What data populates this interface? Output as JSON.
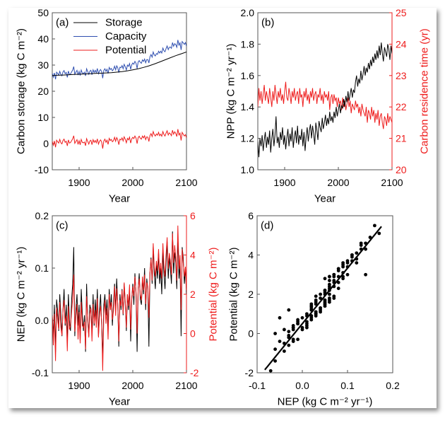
{
  "chart_data": [
    {
      "panel": "(a)",
      "type": "line",
      "xlabel": "Year",
      "ylabel": "Carbon storage (kg C m⁻²)",
      "xlim": [
        1850,
        2100
      ],
      "ylim": [
        -10,
        50
      ],
      "xticks": [
        1900,
        2000,
        2100
      ],
      "yticks": [
        -10,
        0,
        10,
        20,
        30,
        40,
        50
      ],
      "legend_position": "top",
      "series": [
        {
          "name": "Storage",
          "color": "#000000",
          "x_start": 1850,
          "x_step": 10,
          "values": [
            26.0,
            26.1,
            26.2,
            26.3,
            26.4,
            26.5,
            26.6,
            26.7,
            26.8,
            26.9,
            27.0,
            27.1,
            27.3,
            27.5,
            27.8,
            28.2,
            28.6,
            29.1,
            29.7,
            30.4,
            31.2,
            32.0,
            32.8,
            33.6,
            34.3,
            35.0
          ]
        },
        {
          "name": "Capacity",
          "color": "#2f4fb0",
          "x_start": 1850,
          "x_step": 2,
          "values": [
            26.9,
            25.4,
            27.0,
            24.6,
            27.3,
            26.8,
            26.2,
            27.6,
            26.4,
            25.9,
            27.4,
            27.9,
            26.7,
            27.2,
            25.3,
            27.7,
            26.4,
            26.6,
            27.4,
            28.1,
            29.4,
            26.5,
            27.3,
            28.0,
            26.2,
            27.6,
            26.0,
            28.1,
            26.9,
            26.8,
            27.3,
            25.9,
            28.6,
            27.5,
            26.5,
            27.7,
            28.0,
            26.3,
            28.2,
            27.2,
            28.0,
            27.1,
            28.7,
            26.7,
            27.8,
            28.3,
            27.5,
            25.0,
            28.0,
            28.6,
            27.6,
            28.4,
            26.8,
            29.1,
            28.3,
            28.7,
            27.8,
            28.3,
            29.6,
            28.2,
            29.7,
            29.0,
            27.1,
            29.2,
            29.0,
            29.8,
            28.6,
            30.3,
            29.3,
            28.1,
            30.0,
            29.5,
            30.6,
            28.4,
            30.1,
            30.8,
            30.3,
            31.4,
            30.7,
            28.7,
            31.2,
            31.7,
            31.0,
            30.7,
            32.0,
            31.4,
            32.3,
            30.9,
            32.1,
            32.1,
            30.8,
            33.2,
            34.0,
            33.0,
            35.0,
            33.9,
            33.5,
            34.4,
            34.1,
            35.3,
            34.6,
            35.3,
            34.6,
            36.5,
            35.5,
            35.1,
            36.3,
            37.3,
            35.9,
            36.8,
            36.9,
            36.4,
            38.6,
            37.2,
            38.2,
            37.8,
            36.8,
            39.6,
            37.6,
            38.5,
            35.8,
            39.0,
            38.5,
            37.9,
            38.6,
            37.2
          ]
        },
        {
          "name": "Potential",
          "color": "#ee1c1c",
          "x_start": 1850,
          "x_step": 2,
          "values": [
            0.9,
            -0.6,
            1.0,
            -1.4,
            1.3,
            0.7,
            0.2,
            1.6,
            0.3,
            -0.1,
            1.2,
            1.7,
            0.5,
            0.9,
            -0.9,
            1.4,
            0.2,
            0.4,
            1.1,
            1.8,
            3.0,
            0.1,
            0.8,
            1.5,
            -0.3,
            1.1,
            -0.5,
            1.6,
            0.4,
            0.3,
            0.6,
            -0.8,
            1.9,
            0.8,
            -0.2,
            1.0,
            1.3,
            -0.4,
            1.5,
            0.5,
            1.2,
            0.3,
            1.8,
            -0.2,
            0.9,
            1.4,
            0.6,
            -1.9,
            1.0,
            1.7,
            0.5,
            1.3,
            -0.3,
            2.0,
            1.2,
            1.6,
            0.7,
            1.1,
            2.4,
            0.9,
            2.3,
            1.5,
            -0.4,
            1.7,
            1.4,
            2.2,
            1.0,
            2.6,
            1.6,
            0.3,
            2.0,
            1.4,
            2.5,
            0.2,
            1.8,
            2.4,
            1.9,
            2.9,
            2.1,
            0.0,
            2.3,
            2.8,
            2.0,
            1.7,
            2.9,
            2.2,
            3.0,
            1.5,
            2.6,
            2.4,
            0.8,
            3.1,
            3.8,
            2.7,
            4.6,
            3.4,
            2.9,
            3.7,
            3.2,
            4.3,
            3.0,
            3.6,
            2.8,
            4.6,
            3.5,
            2.9,
            4.0,
            4.9,
            3.3,
            4.1,
            3.7,
            3.0,
            5.1,
            3.6,
            4.5,
            3.9,
            2.7,
            5.5,
            3.3,
            4.0,
            1.2,
            4.3,
            3.6,
            2.9,
            3.4,
            2.2
          ]
        }
      ]
    },
    {
      "panel": "(b)",
      "type": "line",
      "xlabel": "Year",
      "ylabel": "NPP (kg C m⁻² yr⁻¹)",
      "ylabel_right": "Carbon residence time (yr)",
      "xlim": [
        1850,
        2100
      ],
      "ylim": [
        1.0,
        2.0
      ],
      "ylim_right": [
        20,
        25
      ],
      "xticks": [
        1900,
        2000,
        2100
      ],
      "yticks": [
        "1.0",
        "1.2",
        "1.4",
        "1.6",
        "1.8",
        "2.0"
      ],
      "yticks_right": [
        20,
        21,
        22,
        23,
        24,
        25
      ],
      "right_axis_color": "#ee1c1c",
      "series": [
        {
          "axis": "right",
          "color": "#ee1c1c",
          "x_start": 1850,
          "x_step": 2,
          "values": [
            22.0,
            22.6,
            22.2,
            22.5,
            22.1,
            22.4,
            22.7,
            22.2,
            22.5,
            22.3,
            22.1,
            22.6,
            22.3,
            22.0,
            22.5,
            22.2,
            22.7,
            22.4,
            22.1,
            22.5,
            22.3,
            22.6,
            22.2,
            22.4,
            22.1,
            22.5,
            22.8,
            22.3,
            22.2,
            22.6,
            22.4,
            22.1,
            22.5,
            22.3,
            22.6,
            22.2,
            22.4,
            22.5,
            22.1,
            22.6,
            22.3,
            22.4,
            22.0,
            22.5,
            22.3,
            22.6,
            22.2,
            22.4,
            22.1,
            22.5,
            22.3,
            22.6,
            22.2,
            22.4,
            22.5,
            22.1,
            22.4,
            22.3,
            22.6,
            22.2,
            22.4,
            22.1,
            22.5,
            22.3,
            22.4,
            22.2,
            22.5,
            21.9,
            22.3,
            22.4,
            22.1,
            22.4,
            22.2,
            22.3,
            22.0,
            22.3,
            22.1,
            22.2,
            21.9,
            22.3,
            22.0,
            22.2,
            21.9,
            22.1,
            22.3,
            22.0,
            22.2,
            21.8,
            22.1,
            22.0,
            21.9,
            22.2,
            22.0,
            22.1,
            21.8,
            22.0,
            21.7,
            22.1,
            21.9,
            21.8,
            21.7,
            22.0,
            21.5,
            21.9,
            21.8,
            21.6,
            22.0,
            21.7,
            21.9,
            21.5,
            21.8,
            21.6,
            21.9,
            21.4,
            21.7,
            21.8,
            21.5,
            21.3,
            21.7,
            21.6,
            21.4,
            21.8,
            21.5,
            21.7,
            21.6,
            21.5
          ]
        },
        {
          "axis": "left",
          "color": "#000000",
          "x_start": 1850,
          "x_step": 2,
          "values": [
            1.18,
            1.08,
            1.2,
            1.15,
            1.22,
            1.12,
            1.19,
            1.24,
            1.14,
            1.21,
            1.16,
            1.25,
            1.11,
            1.2,
            1.26,
            1.15,
            1.22,
            1.34,
            1.17,
            1.21,
            1.14,
            1.24,
            1.19,
            1.27,
            1.16,
            1.22,
            1.13,
            1.2,
            1.26,
            1.15,
            1.23,
            1.18,
            1.27,
            1.14,
            1.21,
            1.25,
            1.17,
            1.28,
            1.16,
            1.22,
            1.19,
            1.26,
            1.15,
            1.24,
            1.12,
            1.21,
            1.27,
            1.18,
            1.25,
            1.29,
            1.2,
            1.28,
            1.23,
            1.16,
            1.3,
            1.25,
            1.19,
            1.31,
            1.27,
            1.24,
            1.33,
            1.26,
            1.3,
            1.35,
            1.28,
            1.33,
            1.29,
            1.37,
            1.31,
            1.34,
            1.3,
            1.37,
            1.33,
            1.4,
            1.34,
            1.38,
            1.42,
            1.36,
            1.41,
            1.39,
            1.45,
            1.4,
            1.47,
            1.43,
            1.5,
            1.44,
            1.48,
            1.52,
            1.46,
            1.51,
            1.49,
            1.56,
            1.6,
            1.53,
            1.58,
            1.55,
            1.63,
            1.57,
            1.61,
            1.66,
            1.6,
            1.65,
            1.62,
            1.68,
            1.64,
            1.7,
            1.66,
            1.72,
            1.68,
            1.74,
            1.7,
            1.76,
            1.71,
            1.79,
            1.73,
            1.81,
            1.74,
            1.69,
            1.78,
            1.75,
            1.72,
            1.8,
            1.77,
            1.7,
            1.79,
            1.74
          ]
        }
      ]
    },
    {
      "panel": "(c)",
      "type": "line",
      "xlabel": "Year",
      "ylabel": "NEP (kg C m⁻² yr⁻¹)",
      "ylabel_right": "Potential (kg C m⁻²)",
      "xlim": [
        1850,
        2100
      ],
      "ylim": [
        -0.1,
        0.2
      ],
      "ylim_right": [
        -2,
        6
      ],
      "xticks": [
        1900,
        2000,
        2100
      ],
      "yticks": [
        "-0.1",
        "0.0",
        "0.1",
        "0.2"
      ],
      "yticks_right": [
        -2,
        0,
        2,
        4,
        6
      ],
      "right_axis_color": "#ee1c1c",
      "series": [
        {
          "name": "NEP",
          "axis": "left",
          "color": "#000000",
          "x_start": 1850,
          "x_step": 2,
          "values": [
            0.01,
            -0.03,
            0.03,
            -0.06,
            0.04,
            0.02,
            -0.02,
            0.05,
            0.01,
            -0.03,
            0.02,
            0.06,
            -0.01,
            0.03,
            -0.04,
            0.05,
            0.0,
            -0.02,
            0.04,
            0.07,
            0.14,
            -0.03,
            0.02,
            0.05,
            -0.01,
            0.03,
            -0.04,
            0.06,
            0.01,
            -0.02,
            0.01,
            -0.06,
            0.07,
            0.0,
            -0.03,
            0.03,
            0.02,
            -0.02,
            0.05,
            -0.01,
            0.04,
            0.0,
            0.06,
            -0.03,
            0.02,
            0.05,
            -0.01,
            -0.07,
            0.03,
            0.05,
            0.01,
            0.04,
            -0.02,
            0.06,
            0.02,
            0.05,
            -0.01,
            0.03,
            0.07,
            0.02,
            0.08,
            0.03,
            -0.05,
            0.05,
            0.02,
            0.06,
            0.01,
            0.07,
            0.03,
            -0.02,
            0.05,
            0.02,
            0.06,
            -0.04,
            0.04,
            0.07,
            0.03,
            0.09,
            0.05,
            -0.06,
            0.06,
            0.09,
            0.04,
            0.03,
            0.08,
            0.05,
            0.1,
            0.02,
            0.08,
            0.06,
            -0.05,
            0.09,
            0.12,
            0.07,
            0.14,
            0.09,
            0.06,
            0.11,
            0.08,
            0.13,
            0.07,
            0.1,
            0.05,
            0.13,
            0.09,
            0.06,
            0.11,
            0.15,
            0.08,
            0.12,
            0.1,
            0.07,
            0.17,
            0.09,
            0.13,
            0.11,
            0.06,
            0.16,
            0.08,
            0.11,
            -0.03,
            0.14,
            0.12,
            0.07,
            0.1,
            0.05
          ]
        },
        {
          "name": "Potential",
          "axis": "right",
          "color": "#ee1c1c",
          "x_start": 1850,
          "x_step": 2,
          "values": [
            0.9,
            -0.6,
            1.0,
            -1.4,
            1.3,
            0.7,
            0.2,
            1.6,
            0.3,
            -0.1,
            1.2,
            1.7,
            0.5,
            0.9,
            -0.9,
            1.4,
            0.2,
            0.4,
            1.1,
            1.8,
            3.0,
            0.1,
            0.8,
            1.5,
            -0.3,
            1.1,
            -0.5,
            1.6,
            0.4,
            0.3,
            0.6,
            -0.8,
            1.9,
            0.8,
            -0.2,
            1.0,
            1.3,
            -0.4,
            1.5,
            0.5,
            1.2,
            0.3,
            1.8,
            -0.2,
            0.9,
            1.4,
            0.6,
            -1.9,
            1.0,
            1.7,
            0.5,
            1.3,
            -0.3,
            2.0,
            1.2,
            1.6,
            0.7,
            1.1,
            2.4,
            0.9,
            2.3,
            1.5,
            -0.4,
            1.7,
            1.4,
            2.2,
            1.0,
            2.6,
            1.6,
            0.3,
            2.0,
            1.4,
            2.5,
            0.2,
            1.8,
            2.4,
            1.9,
            2.9,
            2.1,
            0.0,
            2.3,
            2.8,
            2.0,
            1.7,
            2.9,
            2.2,
            3.0,
            1.5,
            2.6,
            2.4,
            0.8,
            3.1,
            3.8,
            2.7,
            4.6,
            3.4,
            2.9,
            3.7,
            3.2,
            4.3,
            3.0,
            3.6,
            2.8,
            4.6,
            3.5,
            2.9,
            4.0,
            4.9,
            3.3,
            4.1,
            3.7,
            3.0,
            5.1,
            3.6,
            4.5,
            3.9,
            2.7,
            5.5,
            3.3,
            4.0,
            1.2,
            4.3,
            3.6,
            2.9,
            3.4,
            2.2
          ]
        }
      ]
    },
    {
      "panel": "(d)",
      "type": "scatter",
      "xlabel": "NEP (kg C m⁻² yr⁻¹)",
      "ylabel": "Potential (kg C m⁻²)",
      "xlim": [
        -0.1,
        0.2
      ],
      "ylim": [
        -2,
        6
      ],
      "xticks": [
        "-0.1",
        "0.0",
        "0.1",
        "0.2"
      ],
      "yticks": [
        -2,
        0,
        2,
        4,
        6
      ],
      "points": "NEP (x) vs Potential (y) from panel (c)",
      "fit_line": {
        "slope": 28.3,
        "intercept": 0.5,
        "x_range": [
          -0.083,
          0.175
        ],
        "color": "#000000"
      }
    }
  ]
}
